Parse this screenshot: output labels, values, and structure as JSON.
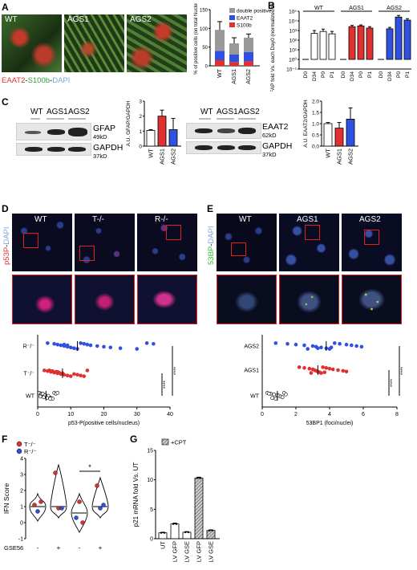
{
  "panels": {
    "A": {
      "label": "A",
      "images": [
        "WT",
        "AGS1",
        "AGS2"
      ],
      "stain": {
        "eaat2": "EAAT2",
        "s100b": "S100b",
        "dapi": "DAPI",
        "sep": "-"
      },
      "colors": {
        "eaat2": "#e03030",
        "s100b": "#30a030",
        "dapi": "#7aa7d8"
      }
    },
    "B": {
      "label": "B"
    },
    "C": {
      "label": "C",
      "blot1": {
        "cols": [
          "WT",
          "AGS1",
          "AGS2"
        ],
        "rows": [
          {
            "name": "GFAP",
            "kd": "49kD"
          },
          {
            "name": "GAPDH",
            "kd": "37kD"
          }
        ]
      },
      "blot2": {
        "cols": [
          "WT",
          "AGS1",
          "AGS2"
        ],
        "rows": [
          {
            "name": "EAAT2",
            "kd": "62kD"
          },
          {
            "name": "GAPDH",
            "kd": "37kD"
          }
        ]
      }
    },
    "D": {
      "label": "D",
      "images": [
        "WT",
        "T-/-",
        "R-/-"
      ],
      "stain": {
        "marker": "p53P",
        "dapi": "DAPI",
        "sep": "-"
      },
      "colors": {
        "marker": "#e03030",
        "dapi": "#7aa7d8"
      }
    },
    "E": {
      "label": "E",
      "images": [
        "WT",
        "AGS1",
        "AGS2"
      ],
      "stain": {
        "marker": "53BP",
        "dapi": "DAPI",
        "sep": "-"
      },
      "colors": {
        "marker": "#30c030",
        "dapi": "#7aa7d8"
      }
    },
    "F": {
      "label": "F"
    },
    "G": {
      "label": "G"
    }
  },
  "chart_data": [
    {
      "id": "A-bar",
      "type": "bar",
      "stacked": true,
      "categories": [
        "WT",
        "AGS1",
        "AGS2"
      ],
      "series": [
        {
          "name": "S100b",
          "values": [
            15,
            10,
            12
          ],
          "color": "#e03030"
        },
        {
          "name": "EAAT2",
          "values": [
            25,
            20,
            25
          ],
          "color": "#3050e0"
        },
        {
          "name": "double positive",
          "values": [
            56,
            30,
            38
          ],
          "color": "#999999"
        }
      ],
      "errors": [
        22,
        15,
        10
      ],
      "ylabel": "% of positive cells (on total Nuclei)",
      "ylim": [
        0,
        150
      ],
      "yticks": [
        0,
        50,
        100,
        150
      ],
      "legend": "top-right"
    },
    {
      "id": "B-bar",
      "type": "bar",
      "log_scale": true,
      "groups": [
        {
          "name": "WT",
          "color": "#ffffff",
          "categories": [
            "D0",
            "D34",
            "P0",
            "P1"
          ],
          "values": [
            1,
            500,
            800,
            450
          ],
          "errors": [
            0,
            500,
            600,
            350
          ]
        },
        {
          "name": "AGS1",
          "color": "#e03030",
          "categories": [
            "D0",
            "D34",
            "P0",
            "P1"
          ],
          "values": [
            1,
            2500,
            3000,
            1800
          ],
          "errors": [
            0,
            900,
            800,
            700
          ]
        },
        {
          "name": "AGS2",
          "color": "#3050e0",
          "categories": [
            "D0",
            "D34",
            "P0",
            "P1"
          ],
          "values": [
            1,
            1500,
            25000,
            12000
          ],
          "errors": [
            0,
            600,
            12000,
            5000
          ]
        }
      ],
      "ylabel": "GFAP fold Vs. each Day0 (normalized to HPRT1)",
      "ylim": [
        0.1,
        100000
      ],
      "yticks": [
        "10⁻¹",
        "10⁰",
        "10¹",
        "10²",
        "10³",
        "10⁴",
        "10⁵"
      ]
    },
    {
      "id": "C-gfap",
      "type": "bar",
      "categories": [
        "WT",
        "AGS1",
        "AGS2"
      ],
      "values": [
        1.05,
        2.0,
        1.1
      ],
      "errors": [
        0.05,
        0.4,
        0.75
      ],
      "colors": [
        "#ffffff",
        "#e03030",
        "#3050e0"
      ],
      "ylabel": "A.U. GFAP/GAPDH",
      "ylim": [
        0,
        3
      ],
      "yticks": [
        0,
        1,
        2,
        3
      ]
    },
    {
      "id": "C-eaat2",
      "type": "bar",
      "categories": [
        "WT",
        "AGS1",
        "AGS2"
      ],
      "values": [
        1.0,
        0.8,
        1.2
      ],
      "errors": [
        0.05,
        0.25,
        0.5
      ],
      "colors": [
        "#ffffff",
        "#e03030",
        "#3050e0"
      ],
      "ylabel": "A.U. EAAT2/GAPDH",
      "ylim": [
        0,
        2
      ],
      "yticks": [
        0.0,
        0.5,
        1.0,
        1.5,
        2.0
      ]
    },
    {
      "id": "D-scatter",
      "type": "scatter",
      "categories": [
        "WT",
        "T⁻/⁻",
        "R⁻/⁻"
      ],
      "series": [
        {
          "name": "WT",
          "color": "#ffffff",
          "values": [
            0.5,
            1,
            1.5,
            2,
            2.5,
            3,
            3.5,
            4,
            4.5,
            5,
            5.5,
            1.2,
            2.2,
            3.2,
            0.8,
            1.8,
            2.8,
            3.8,
            6,
            1.5
          ]
        },
        {
          "name": "T⁻/⁻",
          "color": "#e03030",
          "values": [
            2,
            3,
            4,
            5,
            6,
            7,
            8,
            9,
            10,
            3.5,
            4.5,
            5.5,
            6.5,
            7.5,
            11,
            12,
            13,
            14,
            15,
            4,
            6
          ]
        },
        {
          "name": "R⁻/⁻",
          "color": "#3050e0",
          "values": [
            3,
            5,
            6,
            7,
            8,
            9,
            10,
            11,
            12,
            13,
            14,
            15,
            16,
            18,
            20,
            22,
            25,
            30,
            33,
            35,
            8,
            9
          ]
        }
      ],
      "means": [
        2.5,
        7.5,
        12
      ],
      "xlabel": "p53-P(positive cells/nucleus)",
      "xlim": [
        0,
        40
      ],
      "xticks": [
        0,
        10,
        20,
        30,
        40
      ],
      "significance": [
        "****",
        "****"
      ]
    },
    {
      "id": "E-scatter",
      "type": "scatter",
      "categories": [
        "WT",
        "AGS1",
        "AGS2"
      ],
      "series": [
        {
          "name": "WT",
          "color": "#ffffff",
          "values": [
            0.3,
            0.5,
            0.7,
            0.9,
            1.0,
            1.1,
            1.2,
            0.6,
            0.8,
            1.3,
            0.4,
            1.4
          ]
        },
        {
          "name": "AGS1",
          "color": "#e03030",
          "values": [
            2.2,
            2.5,
            2.8,
            3.0,
            3.1,
            3.2,
            3.3,
            3.4,
            3.5,
            3.6,
            3.8,
            4.0,
            4.2,
            4.5,
            4.8,
            5.0,
            3.7,
            2.9
          ]
        },
        {
          "name": "AGS2",
          "color": "#3050e0",
          "values": [
            0.8,
            1.5,
            2.0,
            2.5,
            3.0,
            3.2,
            3.5,
            3.8,
            4.0,
            4.3,
            4.6,
            5.0,
            5.3,
            5.6,
            5.9,
            4.1,
            3.3,
            2.7
          ]
        }
      ],
      "means": [
        0.9,
        3.3,
        3.8
      ],
      "xlabel": "53BP1 (foci/nuclei)",
      "xlim": [
        0,
        8
      ],
      "xticks": [
        0,
        2,
        4,
        6,
        8
      ],
      "significance": [
        "****",
        "****"
      ]
    },
    {
      "id": "F-violin",
      "type": "violin",
      "ylabel": "IFN Score",
      "ylim": [
        -1,
        4
      ],
      "yticks": [
        -1,
        0,
        1,
        2,
        3,
        4
      ],
      "legend": [
        {
          "name": "T⁻/⁻",
          "color": "#e03030"
        },
        {
          "name": "R⁻/⁻",
          "color": "#3050e0"
        }
      ],
      "treatment_label": "GSE56",
      "treatment": [
        "-",
        "+",
        "-",
        "+"
      ],
      "medians": [
        1.0,
        1.0,
        0.6,
        1.0
      ],
      "points": [
        [
          {
            "y": 1.1,
            "c": "#e03030"
          },
          {
            "y": 0.7,
            "c": "#3050e0"
          },
          {
            "y": 1.3,
            "c": "#e03030"
          }
        ],
        [
          {
            "y": 3.1,
            "c": "#e03030"
          },
          {
            "y": 0.9,
            "c": "#e03030"
          },
          {
            "y": 0.9,
            "c": "#3050e0"
          }
        ],
        [
          {
            "y": 0.3,
            "c": "#3050e0"
          },
          {
            "y": 1.3,
            "c": "#e03030"
          },
          {
            "y": 0.0,
            "c": "#e03030"
          }
        ],
        [
          {
            "y": 2.3,
            "c": "#e03030"
          },
          {
            "y": 0.9,
            "c": "#3050e0"
          },
          {
            "y": 1.1,
            "c": "#3050e0"
          }
        ]
      ],
      "significance": "*"
    },
    {
      "id": "G-bar",
      "type": "bar",
      "categories": [
        "UT",
        "LV GFP",
        "LV GSE",
        "LV GFP",
        "LV GSE"
      ],
      "values": [
        1.0,
        2.5,
        1.1,
        10.3,
        1.4
      ],
      "errors": [
        0.1,
        0.15,
        0.1,
        0.15,
        0.1
      ],
      "hatched": [
        false,
        false,
        false,
        true,
        true
      ],
      "ylabel": "p21 mRNA fold Vs. UT",
      "ylim": [
        0,
        15
      ],
      "yticks": [
        0,
        5,
        10,
        15
      ],
      "legend": [
        {
          "name": "+CPT",
          "hatched": true
        }
      ]
    }
  ]
}
